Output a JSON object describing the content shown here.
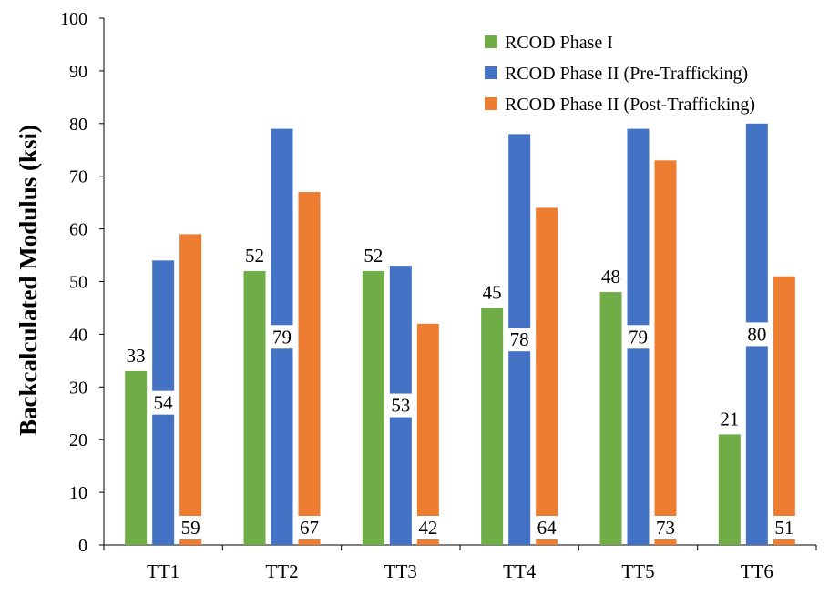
{
  "chart_data": {
    "type": "bar",
    "title": "",
    "xlabel": "",
    "ylabel": "Backcalculated Modulus (ksi)",
    "ylim": [
      0,
      100
    ],
    "yticks": [
      0,
      10,
      20,
      30,
      40,
      50,
      60,
      70,
      80,
      90,
      100
    ],
    "grid": false,
    "legend_position": "top-right",
    "categories": [
      "TT1",
      "TT2",
      "TT3",
      "TT4",
      "TT5",
      "TT6"
    ],
    "series": [
      {
        "name": "RCOD Phase I",
        "color": "#70AD47",
        "values": [
          33,
          52,
          52,
          45,
          48,
          21
        ],
        "label_position": "above"
      },
      {
        "name": "RCOD Phase II (Pre-Trafficking)",
        "color": "#4472C4",
        "values": [
          54,
          79,
          53,
          78,
          79,
          80
        ],
        "label_position": "middle"
      },
      {
        "name": "RCOD Phase II (Post-Trafficking)",
        "color": "#ED7D31",
        "values": [
          59,
          67,
          42,
          64,
          73,
          51
        ],
        "label_position": "base"
      }
    ]
  }
}
